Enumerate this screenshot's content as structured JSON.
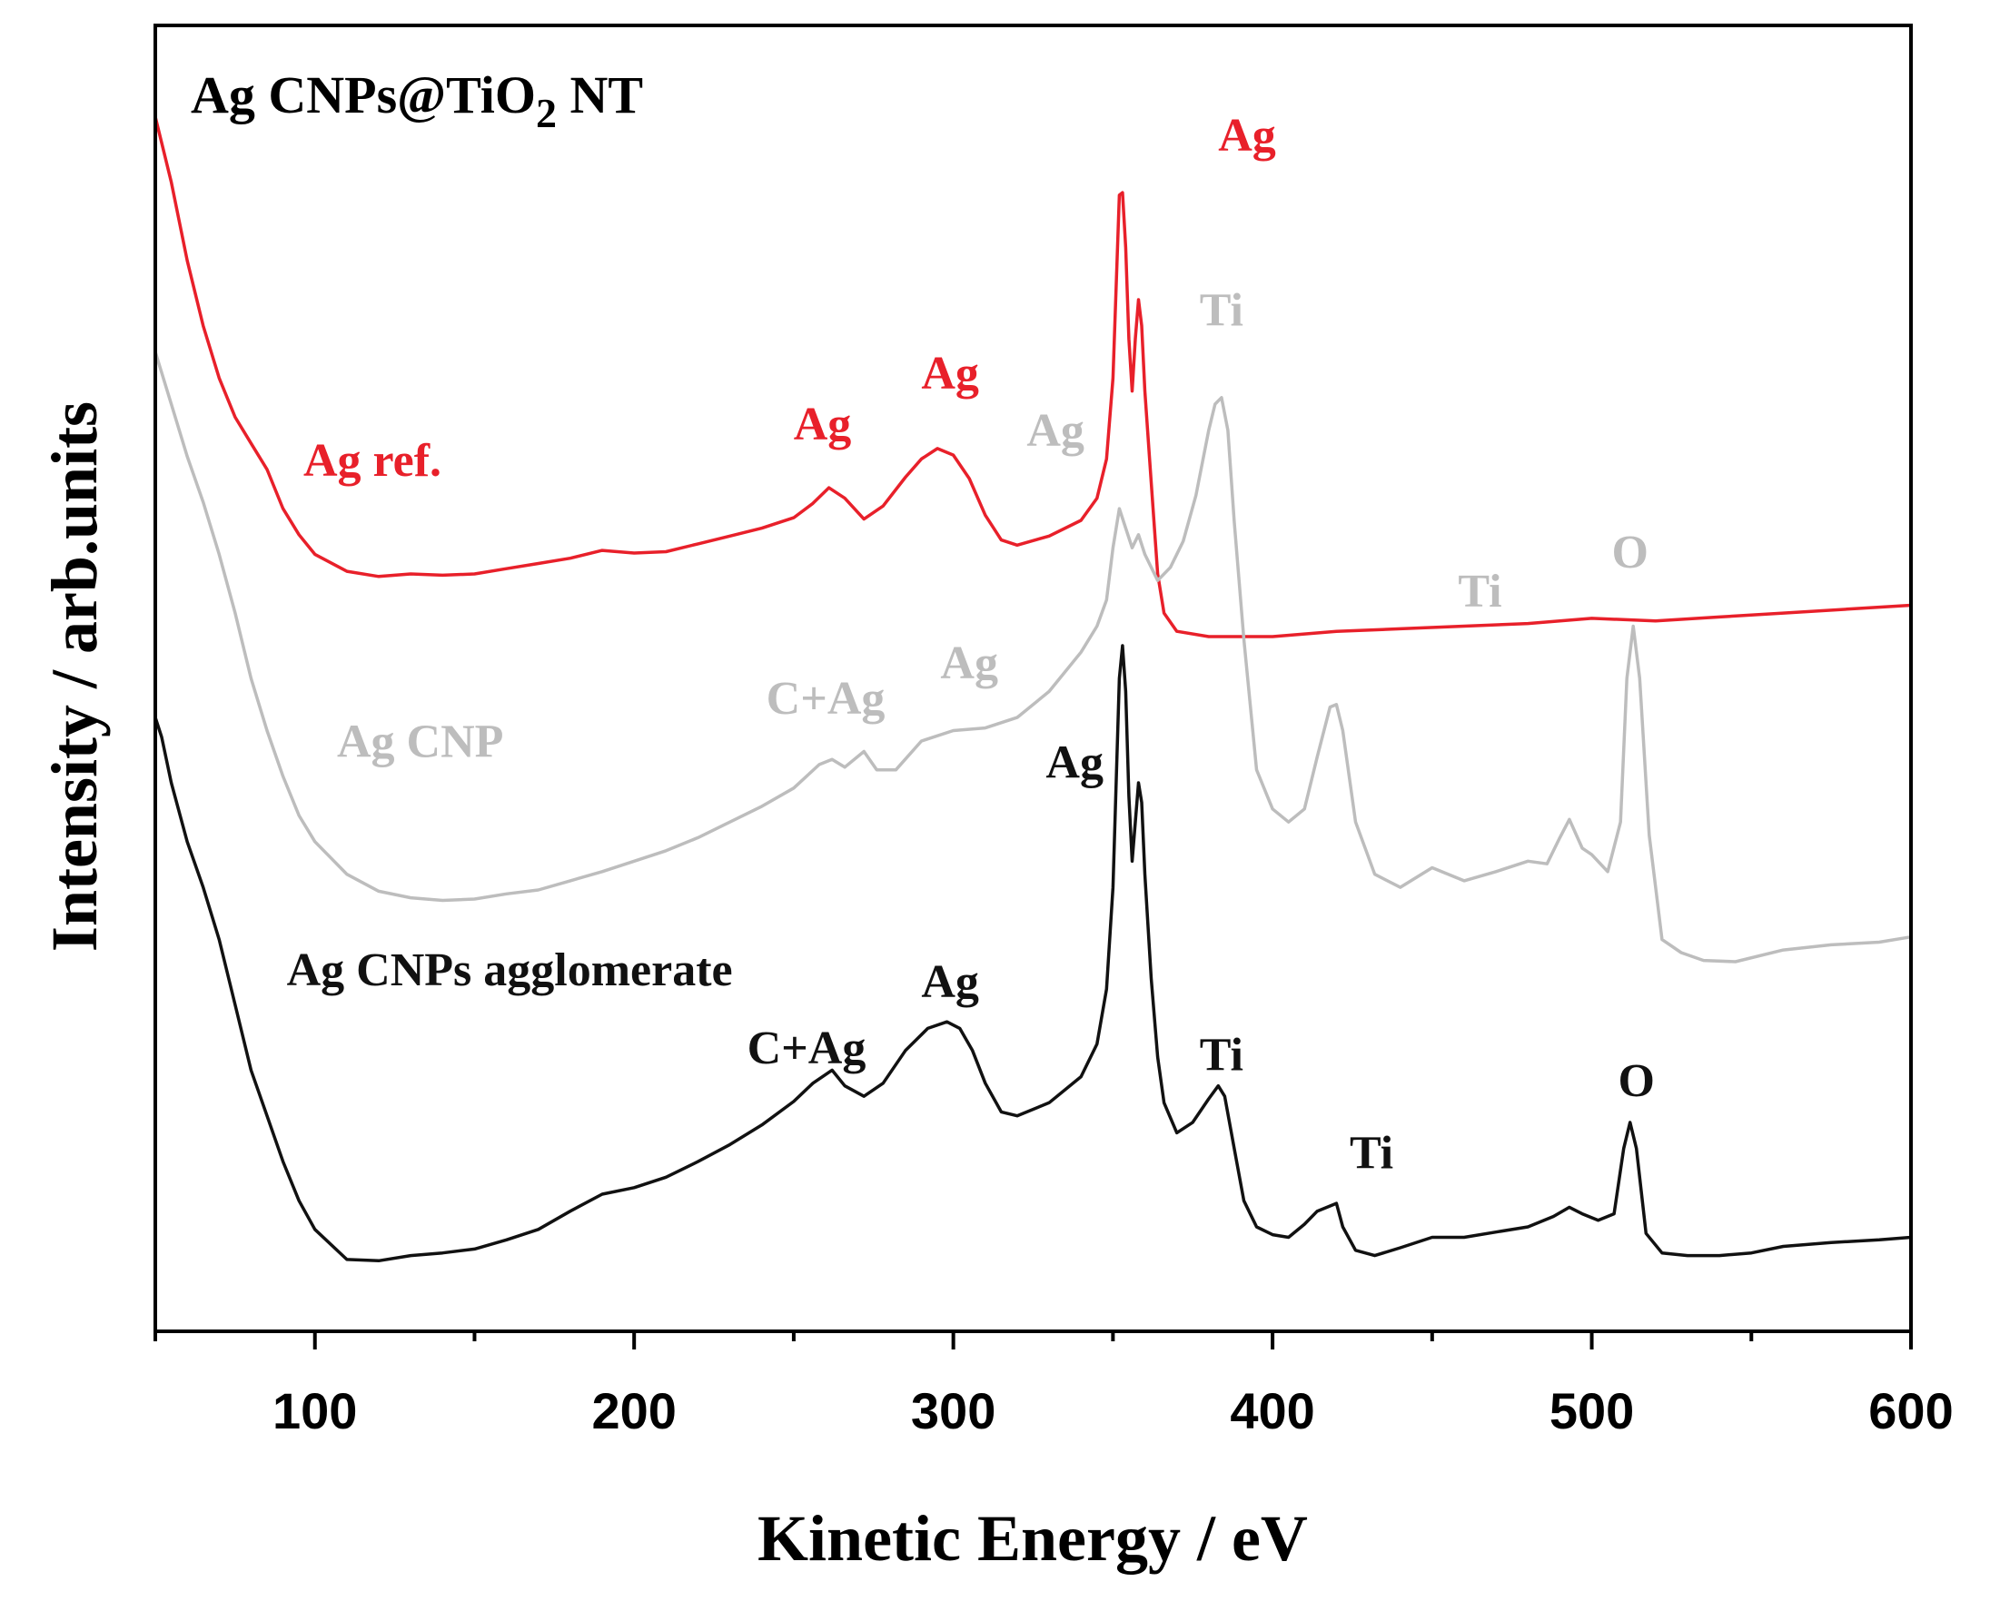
{
  "chart_data": {
    "type": "line",
    "title_parts": {
      "main": "Ag CNPs@TiO",
      "sub": "2",
      "tail": " NT"
    },
    "xlabel": "Kinetic Energy / eV",
    "ylabel": "Intensity / arb.units",
    "xlim": [
      50,
      600
    ],
    "ylim": [
      0,
      1
    ],
    "x_ticks": [
      100,
      200,
      300,
      400,
      500,
      600
    ],
    "x_minor_step": 50,
    "y_ticks_shown": false,
    "grid": false,
    "series": [
      {
        "name": "Ag ref.",
        "color": "#e8202a",
        "points": [
          [
            50,
            0.93
          ],
          [
            55,
            0.88
          ],
          [
            60,
            0.82
          ],
          [
            65,
            0.77
          ],
          [
            70,
            0.73
          ],
          [
            75,
            0.7
          ],
          [
            80,
            0.68
          ],
          [
            85,
            0.66
          ],
          [
            90,
            0.63
          ],
          [
            95,
            0.61
          ],
          [
            100,
            0.595
          ],
          [
            110,
            0.582
          ],
          [
            120,
            0.578
          ],
          [
            130,
            0.58
          ],
          [
            140,
            0.579
          ],
          [
            150,
            0.58
          ],
          [
            160,
            0.584
          ],
          [
            170,
            0.588
          ],
          [
            180,
            0.592
          ],
          [
            190,
            0.598
          ],
          [
            200,
            0.596
          ],
          [
            210,
            0.597
          ],
          [
            220,
            0.603
          ],
          [
            230,
            0.609
          ],
          [
            240,
            0.615
          ],
          [
            250,
            0.623
          ],
          [
            256,
            0.634
          ],
          [
            261,
            0.646
          ],
          [
            266,
            0.638
          ],
          [
            272,
            0.622
          ],
          [
            278,
            0.632
          ],
          [
            285,
            0.654
          ],
          [
            290,
            0.668
          ],
          [
            295,
            0.676
          ],
          [
            300,
            0.671
          ],
          [
            305,
            0.653
          ],
          [
            310,
            0.625
          ],
          [
            315,
            0.606
          ],
          [
            320,
            0.602
          ],
          [
            330,
            0.609
          ],
          [
            340,
            0.621
          ],
          [
            345,
            0.638
          ],
          [
            348,
            0.668
          ],
          [
            350,
            0.73
          ],
          [
            351,
            0.8
          ],
          [
            352,
            0.87
          ],
          [
            353,
            0.872
          ],
          [
            354,
            0.83
          ],
          [
            355,
            0.76
          ],
          [
            356,
            0.72
          ],
          [
            357,
            0.76
          ],
          [
            358,
            0.79
          ],
          [
            359,
            0.77
          ],
          [
            360,
            0.72
          ],
          [
            362,
            0.65
          ],
          [
            364,
            0.58
          ],
          [
            366,
            0.55
          ],
          [
            370,
            0.536
          ],
          [
            380,
            0.532
          ],
          [
            400,
            0.532
          ],
          [
            420,
            0.536
          ],
          [
            440,
            0.538
          ],
          [
            460,
            0.54
          ],
          [
            480,
            0.542
          ],
          [
            500,
            0.546
          ],
          [
            520,
            0.544
          ],
          [
            540,
            0.547
          ],
          [
            560,
            0.55
          ],
          [
            580,
            0.553
          ],
          [
            600,
            0.556
          ]
        ]
      },
      {
        "name": "Ag CNP",
        "color": "#bdbdbd",
        "points": [
          [
            50,
            0.75
          ],
          [
            55,
            0.71
          ],
          [
            60,
            0.67
          ],
          [
            65,
            0.635
          ],
          [
            70,
            0.595
          ],
          [
            75,
            0.55
          ],
          [
            80,
            0.5
          ],
          [
            85,
            0.46
          ],
          [
            90,
            0.425
          ],
          [
            95,
            0.395
          ],
          [
            100,
            0.375
          ],
          [
            110,
            0.35
          ],
          [
            120,
            0.337
          ],
          [
            130,
            0.332
          ],
          [
            140,
            0.33
          ],
          [
            150,
            0.331
          ],
          [
            160,
            0.335
          ],
          [
            170,
            0.338
          ],
          [
            180,
            0.345
          ],
          [
            190,
            0.352
          ],
          [
            200,
            0.36
          ],
          [
            210,
            0.368
          ],
          [
            220,
            0.378
          ],
          [
            230,
            0.39
          ],
          [
            240,
            0.402
          ],
          [
            250,
            0.416
          ],
          [
            258,
            0.434
          ],
          [
            262,
            0.438
          ],
          [
            266,
            0.432
          ],
          [
            272,
            0.444
          ],
          [
            276,
            0.43
          ],
          [
            282,
            0.43
          ],
          [
            290,
            0.452
          ],
          [
            300,
            0.46
          ],
          [
            310,
            0.462
          ],
          [
            320,
            0.47
          ],
          [
            330,
            0.49
          ],
          [
            340,
            0.52
          ],
          [
            345,
            0.54
          ],
          [
            348,
            0.56
          ],
          [
            350,
            0.6
          ],
          [
            352,
            0.63
          ],
          [
            354,
            0.615
          ],
          [
            356,
            0.6
          ],
          [
            358,
            0.61
          ],
          [
            360,
            0.595
          ],
          [
            364,
            0.575
          ],
          [
            368,
            0.585
          ],
          [
            372,
            0.605
          ],
          [
            376,
            0.64
          ],
          [
            380,
            0.69
          ],
          [
            382,
            0.71
          ],
          [
            384,
            0.715
          ],
          [
            386,
            0.69
          ],
          [
            388,
            0.62
          ],
          [
            391,
            0.53
          ],
          [
            395,
            0.43
          ],
          [
            400,
            0.4
          ],
          [
            405,
            0.39
          ],
          [
            410,
            0.4
          ],
          [
            414,
            0.44
          ],
          [
            418,
            0.478
          ],
          [
            420,
            0.48
          ],
          [
            422,
            0.46
          ],
          [
            426,
            0.39
          ],
          [
            432,
            0.35
          ],
          [
            440,
            0.34
          ],
          [
            450,
            0.355
          ],
          [
            460,
            0.345
          ],
          [
            470,
            0.352
          ],
          [
            480,
            0.36
          ],
          [
            486,
            0.358
          ],
          [
            490,
            0.378
          ],
          [
            493,
            0.392
          ],
          [
            497,
            0.37
          ],
          [
            500,
            0.365
          ],
          [
            505,
            0.352
          ],
          [
            509,
            0.39
          ],
          [
            511,
            0.5
          ],
          [
            513,
            0.54
          ],
          [
            515,
            0.5
          ],
          [
            518,
            0.38
          ],
          [
            522,
            0.3
          ],
          [
            528,
            0.29
          ],
          [
            535,
            0.284
          ],
          [
            545,
            0.283
          ],
          [
            560,
            0.292
          ],
          [
            575,
            0.296
          ],
          [
            590,
            0.298
          ],
          [
            600,
            0.302
          ]
        ]
      },
      {
        "name": "Ag CNPs agglomerate",
        "color": "#111111",
        "points": [
          [
            50,
            0.47
          ],
          [
            52,
            0.455
          ],
          [
            55,
            0.42
          ],
          [
            60,
            0.375
          ],
          [
            65,
            0.34
          ],
          [
            70,
            0.3
          ],
          [
            75,
            0.25
          ],
          [
            80,
            0.2
          ],
          [
            85,
            0.165
          ],
          [
            90,
            0.13
          ],
          [
            95,
            0.1
          ],
          [
            100,
            0.078
          ],
          [
            110,
            0.055
          ],
          [
            120,
            0.054
          ],
          [
            130,
            0.058
          ],
          [
            140,
            0.06
          ],
          [
            150,
            0.063
          ],
          [
            160,
            0.07
          ],
          [
            170,
            0.078
          ],
          [
            180,
            0.092
          ],
          [
            190,
            0.105
          ],
          [
            200,
            0.11
          ],
          [
            210,
            0.118
          ],
          [
            220,
            0.13
          ],
          [
            230,
            0.143
          ],
          [
            240,
            0.158
          ],
          [
            250,
            0.176
          ],
          [
            256,
            0.19
          ],
          [
            262,
            0.2
          ],
          [
            266,
            0.188
          ],
          [
            272,
            0.18
          ],
          [
            278,
            0.19
          ],
          [
            285,
            0.215
          ],
          [
            292,
            0.232
          ],
          [
            298,
            0.237
          ],
          [
            302,
            0.232
          ],
          [
            306,
            0.215
          ],
          [
            310,
            0.19
          ],
          [
            315,
            0.168
          ],
          [
            320,
            0.165
          ],
          [
            330,
            0.175
          ],
          [
            340,
            0.195
          ],
          [
            345,
            0.22
          ],
          [
            348,
            0.262
          ],
          [
            350,
            0.34
          ],
          [
            351,
            0.42
          ],
          [
            352,
            0.5
          ],
          [
            353,
            0.525
          ],
          [
            354,
            0.49
          ],
          [
            355,
            0.41
          ],
          [
            356,
            0.36
          ],
          [
            357,
            0.39
          ],
          [
            358,
            0.42
          ],
          [
            359,
            0.405
          ],
          [
            360,
            0.35
          ],
          [
            362,
            0.27
          ],
          [
            364,
            0.21
          ],
          [
            366,
            0.175
          ],
          [
            370,
            0.152
          ],
          [
            375,
            0.16
          ],
          [
            380,
            0.178
          ],
          [
            383,
            0.188
          ],
          [
            385,
            0.18
          ],
          [
            388,
            0.14
          ],
          [
            391,
            0.1
          ],
          [
            395,
            0.08
          ],
          [
            400,
            0.074
          ],
          [
            405,
            0.072
          ],
          [
            410,
            0.082
          ],
          [
            414,
            0.092
          ],
          [
            418,
            0.096
          ],
          [
            420,
            0.098
          ],
          [
            422,
            0.08
          ],
          [
            426,
            0.062
          ],
          [
            432,
            0.058
          ],
          [
            440,
            0.064
          ],
          [
            450,
            0.072
          ],
          [
            460,
            0.072
          ],
          [
            470,
            0.076
          ],
          [
            480,
            0.08
          ],
          [
            488,
            0.088
          ],
          [
            493,
            0.095
          ],
          [
            497,
            0.09
          ],
          [
            502,
            0.085
          ],
          [
            507,
            0.09
          ],
          [
            510,
            0.14
          ],
          [
            512,
            0.16
          ],
          [
            514,
            0.14
          ],
          [
            517,
            0.075
          ],
          [
            522,
            0.06
          ],
          [
            530,
            0.058
          ],
          [
            540,
            0.058
          ],
          [
            550,
            0.06
          ],
          [
            560,
            0.065
          ],
          [
            575,
            0.068
          ],
          [
            590,
            0.07
          ],
          [
            600,
            0.072
          ]
        ]
      }
    ],
    "labels": [
      {
        "text": "Ag",
        "color": "#e8202a",
        "x": 392,
        "y": 0.904
      },
      {
        "text": "Ag",
        "color": "#e8202a",
        "x": 299,
        "y": 0.722
      },
      {
        "text": "Ag",
        "color": "#e8202a",
        "x": 259,
        "y": 0.683
      },
      {
        "text": "Ag ref.",
        "color": "#e8202a",
        "x": 118,
        "y": 0.655
      },
      {
        "text": "Ti",
        "color": "#bdbdbd",
        "x": 384,
        "y": 0.77
      },
      {
        "text": "Ag",
        "color": "#bdbdbd",
        "x": 332,
        "y": 0.678
      },
      {
        "text": "Ti",
        "color": "#bdbdbd",
        "x": 465,
        "y": 0.555
      },
      {
        "text": "O",
        "color": "#bdbdbd",
        "x": 512,
        "y": 0.585
      },
      {
        "text": "Ag",
        "color": "#bdbdbd",
        "x": 305,
        "y": 0.5
      },
      {
        "text": "C+Ag",
        "color": "#bdbdbd",
        "x": 260,
        "y": 0.473
      },
      {
        "text": "Ag CNP",
        "color": "#bdbdbd",
        "x": 133,
        "y": 0.44
      },
      {
        "text": "Ag",
        "color": "#111111",
        "x": 338,
        "y": 0.424
      },
      {
        "text": "Ag CNPs agglomerate",
        "color": "#111111",
        "x": 161,
        "y": 0.265
      },
      {
        "text": "Ag",
        "color": "#111111",
        "x": 299,
        "y": 0.256
      },
      {
        "text": "C+Ag",
        "color": "#111111",
        "x": 254,
        "y": 0.205
      },
      {
        "text": "Ti",
        "color": "#111111",
        "x": 384,
        "y": 0.2
      },
      {
        "text": "O",
        "color": "#111111",
        "x": 514,
        "y": 0.18
      },
      {
        "text": "Ti",
        "color": "#111111",
        "x": 431,
        "y": 0.125
      }
    ]
  }
}
